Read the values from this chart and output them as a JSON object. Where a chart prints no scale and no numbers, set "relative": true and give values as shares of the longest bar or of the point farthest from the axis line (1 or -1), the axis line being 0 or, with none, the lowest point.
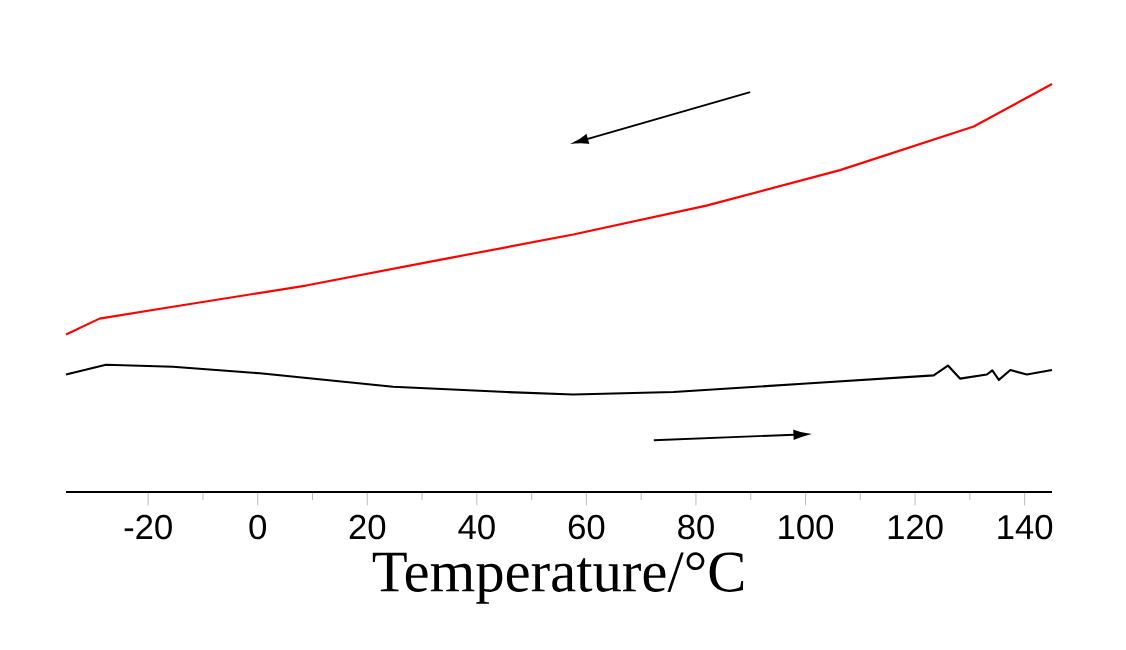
{
  "chart_data": {
    "type": "line",
    "relative": true,
    "xlabel": "Temperature/°C",
    "xlim": [
      -35,
      145
    ],
    "xticks": [
      -20,
      0,
      20,
      40,
      60,
      80,
      100,
      120,
      140
    ],
    "grid": false,
    "marker": "none",
    "line_style": "solid",
    "series": [
      {
        "color": "#ff0000",
        "x": [
          -35,
          -28.9,
          -15.5,
          8.8,
          33.2,
          57.6,
          81.9,
          106.3,
          130.7,
          145
        ],
        "values": [
          0.386,
          0.425,
          0.454,
          0.506,
          0.569,
          0.631,
          0.702,
          0.789,
          0.896,
          1
        ]
      },
      {
        "color": "#000000",
        "x": [
          -35,
          -27.7,
          -15.5,
          0.4,
          24.7,
          45.4,
          57.6,
          75.9,
          100.2,
          123.4,
          126,
          128.2,
          133.1,
          134.1,
          135.3,
          137.4,
          140.4,
          145
        ],
        "values": [
          0.288,
          0.312,
          0.307,
          0.291,
          0.258,
          0.245,
          0.239,
          0.245,
          0.266,
          0.286,
          0.31,
          0.278,
          0.288,
          0.298,
          0.275,
          0.299,
          0.288,
          0.299
        ]
      }
    ]
  }
}
